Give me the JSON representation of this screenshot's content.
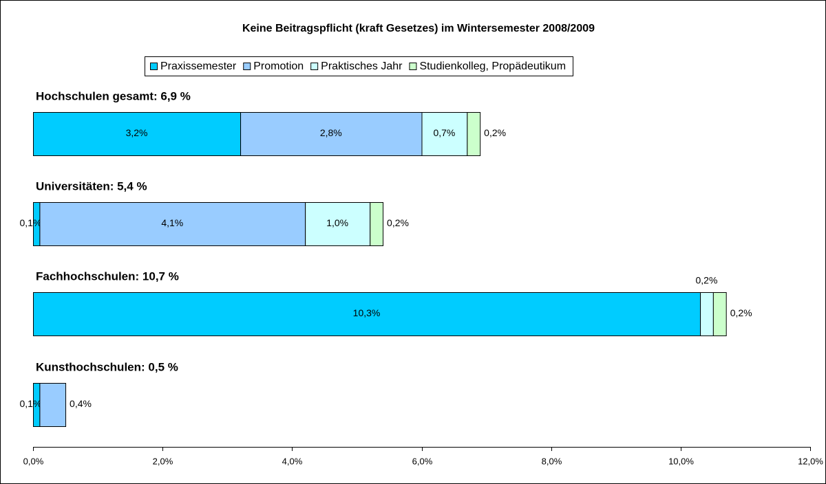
{
  "chart_data": {
    "type": "stacked-bar-horizontal",
    "title": "Keine Beitragspflicht (kraft Gesetzes) im Wintersemester 2008/2009",
    "categories": [
      "Hochschulen gesamt: 6,9 %",
      "Universitäten: 5,4 %",
      "Fachhochschulen: 10,7 %",
      "Kunsthochschulen: 0,5 %"
    ],
    "series": [
      {
        "name": "Praxissemester",
        "color": "#00ccff",
        "values": [
          3.2,
          0.1,
          10.3,
          0.1
        ],
        "value_labels": [
          "3,2%",
          "0,1%",
          "10,3%",
          "0,1%"
        ]
      },
      {
        "name": "Promotion",
        "color": "#99ccff",
        "values": [
          2.8,
          4.1,
          null,
          0.4
        ],
        "value_labels": [
          "2,8%",
          "4,1%",
          null,
          "0,4%"
        ]
      },
      {
        "name": "Praktisches Jahr",
        "color": "#ccffff",
        "values": [
          0.7,
          1.0,
          0.2,
          null
        ],
        "value_labels": [
          "0,7%",
          "1,0%",
          "0,2%",
          null
        ]
      },
      {
        "name": "Studienkolleg, Propädeutikum",
        "color": "#ccffcc",
        "values": [
          0.2,
          0.2,
          0.2,
          null
        ],
        "value_labels": [
          "0,2%",
          "0,2%",
          "0,2%",
          null
        ]
      }
    ],
    "xlim": [
      0,
      12
    ],
    "xticks": [
      {
        "value": 0,
        "label": "0,0%"
      },
      {
        "value": 2,
        "label": "2,0%"
      },
      {
        "value": 4,
        "label": "4,0%"
      },
      {
        "value": 6,
        "label": "6,0%"
      },
      {
        "value": 8,
        "label": "8,0%"
      },
      {
        "value": 10,
        "label": "10,0%"
      },
      {
        "value": 12,
        "label": "12,0%"
      }
    ],
    "legend": "top"
  }
}
